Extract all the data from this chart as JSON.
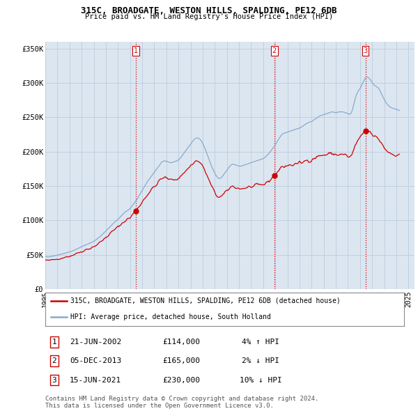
{
  "title": "315C, BROADGATE, WESTON HILLS, SPALDING, PE12 6DB",
  "subtitle": "Price paid vs. HM Land Registry's House Price Index (HPI)",
  "ylabel_ticks": [
    "£0",
    "£50K",
    "£100K",
    "£150K",
    "£200K",
    "£250K",
    "£300K",
    "£350K"
  ],
  "ytick_vals": [
    0,
    50000,
    100000,
    150000,
    200000,
    250000,
    300000,
    350000
  ],
  "ylim": [
    0,
    360000
  ],
  "xlim_start": 1995.0,
  "xlim_end": 2025.5,
  "red_line_color": "#cc0000",
  "blue_line_color": "#88aacc",
  "marker_color": "#cc0000",
  "vline_color": "#cc0000",
  "vline_style": ":",
  "grid_color": "#bbccdd",
  "background_color": "#dce6f1",
  "legend_label_red": "315C, BROADGATE, WESTON HILLS, SPALDING, PE12 6DB (detached house)",
  "legend_label_blue": "HPI: Average price, detached house, South Holland",
  "sale_labels": [
    {
      "num": 1,
      "date": "21-JUN-2002",
      "price": "£114,000",
      "pct": "4% ↑ HPI",
      "x_year": 2002.47
    },
    {
      "num": 2,
      "date": "05-DEC-2013",
      "price": "£165,000",
      "pct": "2% ↓ HPI",
      "x_year": 2013.92
    },
    {
      "num": 3,
      "date": "15-JUN-2021",
      "price": "£230,000",
      "pct": "10% ↓ HPI",
      "x_year": 2021.45
    }
  ],
  "sale_values": [
    114000,
    165000,
    230000
  ],
  "footnote": "Contains HM Land Registry data © Crown copyright and database right 2024.\nThis data is licensed under the Open Government Licence v3.0.",
  "hpi_data": [
    [
      1995.0,
      47500
    ],
    [
      1995.083,
      47200
    ],
    [
      1995.167,
      47000
    ],
    [
      1995.25,
      46900
    ],
    [
      1995.333,
      47000
    ],
    [
      1995.417,
      47300
    ],
    [
      1995.5,
      47600
    ],
    [
      1995.583,
      47800
    ],
    [
      1995.667,
      48100
    ],
    [
      1995.75,
      48400
    ],
    [
      1995.833,
      48700
    ],
    [
      1995.917,
      49000
    ],
    [
      1996.0,
      49300
    ],
    [
      1996.083,
      49700
    ],
    [
      1996.167,
      50100
    ],
    [
      1996.25,
      50500
    ],
    [
      1996.333,
      50800
    ],
    [
      1996.417,
      51200
    ],
    [
      1996.5,
      51600
    ],
    [
      1996.583,
      52000
    ],
    [
      1996.667,
      52400
    ],
    [
      1996.75,
      52800
    ],
    [
      1996.833,
      53200
    ],
    [
      1996.917,
      53600
    ],
    [
      1997.0,
      54000
    ],
    [
      1997.083,
      54500
    ],
    [
      1997.167,
      55000
    ],
    [
      1997.25,
      55600
    ],
    [
      1997.333,
      56200
    ],
    [
      1997.417,
      56900
    ],
    [
      1997.5,
      57600
    ],
    [
      1997.583,
      58300
    ],
    [
      1997.667,
      59000
    ],
    [
      1997.75,
      59700
    ],
    [
      1997.833,
      60400
    ],
    [
      1997.917,
      61000
    ],
    [
      1998.0,
      61700
    ],
    [
      1998.083,
      62400
    ],
    [
      1998.167,
      63000
    ],
    [
      1998.25,
      63700
    ],
    [
      1998.333,
      64300
    ],
    [
      1998.417,
      65000
    ],
    [
      1998.5,
      65600
    ],
    [
      1998.583,
      66200
    ],
    [
      1998.667,
      66800
    ],
    [
      1998.75,
      67400
    ],
    [
      1998.833,
      68100
    ],
    [
      1998.917,
      68800
    ],
    [
      1999.0,
      69600
    ],
    [
      1999.083,
      70500
    ],
    [
      1999.167,
      71500
    ],
    [
      1999.25,
      72600
    ],
    [
      1999.333,
      73700
    ],
    [
      1999.417,
      74900
    ],
    [
      1999.5,
      76100
    ],
    [
      1999.583,
      77400
    ],
    [
      1999.667,
      78800
    ],
    [
      1999.75,
      80100
    ],
    [
      1999.833,
      81500
    ],
    [
      1999.917,
      83000
    ],
    [
      2000.0,
      84500
    ],
    [
      2000.083,
      86000
    ],
    [
      2000.167,
      87500
    ],
    [
      2000.25,
      89000
    ],
    [
      2000.333,
      90500
    ],
    [
      2000.417,
      92000
    ],
    [
      2000.5,
      93500
    ],
    [
      2000.583,
      94900
    ],
    [
      2000.667,
      96300
    ],
    [
      2000.75,
      97700
    ],
    [
      2000.833,
      99000
    ],
    [
      2000.917,
      100300
    ],
    [
      2001.0,
      101500
    ],
    [
      2001.083,
      103000
    ],
    [
      2001.167,
      104500
    ],
    [
      2001.25,
      106000
    ],
    [
      2001.333,
      107500
    ],
    [
      2001.417,
      109000
    ],
    [
      2001.5,
      110500
    ],
    [
      2001.583,
      112000
    ],
    [
      2001.667,
      113000
    ],
    [
      2001.75,
      114000
    ],
    [
      2001.833,
      115000
    ],
    [
      2001.917,
      116000
    ],
    [
      2002.0,
      117000
    ],
    [
      2002.083,
      119000
    ],
    [
      2002.167,
      121000
    ],
    [
      2002.25,
      123000
    ],
    [
      2002.333,
      125000
    ],
    [
      2002.417,
      127000
    ],
    [
      2002.5,
      129000
    ],
    [
      2002.583,
      131000
    ],
    [
      2002.667,
      133500
    ],
    [
      2002.75,
      136000
    ],
    [
      2002.833,
      138500
    ],
    [
      2002.917,
      141000
    ],
    [
      2003.0,
      143500
    ],
    [
      2003.083,
      146000
    ],
    [
      2003.167,
      148500
    ],
    [
      2003.25,
      151000
    ],
    [
      2003.333,
      153500
    ],
    [
      2003.417,
      156000
    ],
    [
      2003.5,
      158000
    ],
    [
      2003.583,
      160000
    ],
    [
      2003.667,
      162000
    ],
    [
      2003.75,
      164000
    ],
    [
      2003.833,
      166000
    ],
    [
      2003.917,
      168000
    ],
    [
      2004.0,
      170000
    ],
    [
      2004.083,
      172000
    ],
    [
      2004.167,
      174000
    ],
    [
      2004.25,
      176000
    ],
    [
      2004.333,
      178000
    ],
    [
      2004.417,
      180000
    ],
    [
      2004.5,
      182000
    ],
    [
      2004.583,
      184000
    ],
    [
      2004.667,
      185500
    ],
    [
      2004.75,
      186000
    ],
    [
      2004.833,
      186500
    ],
    [
      2004.917,
      186500
    ],
    [
      2005.0,
      186000
    ],
    [
      2005.083,
      185500
    ],
    [
      2005.167,
      185000
    ],
    [
      2005.25,
      184500
    ],
    [
      2005.333,
      184000
    ],
    [
      2005.417,
      184000
    ],
    [
      2005.5,
      184500
    ],
    [
      2005.583,
      185000
    ],
    [
      2005.667,
      185500
    ],
    [
      2005.75,
      186000
    ],
    [
      2005.833,
      186500
    ],
    [
      2005.917,
      187000
    ],
    [
      2006.0,
      188000
    ],
    [
      2006.083,
      189500
    ],
    [
      2006.167,
      191000
    ],
    [
      2006.25,
      193000
    ],
    [
      2006.333,
      195000
    ],
    [
      2006.417,
      197000
    ],
    [
      2006.5,
      199000
    ],
    [
      2006.583,
      201000
    ],
    [
      2006.667,
      203000
    ],
    [
      2006.75,
      205000
    ],
    [
      2006.833,
      207000
    ],
    [
      2006.917,
      209000
    ],
    [
      2007.0,
      211000
    ],
    [
      2007.083,
      213000
    ],
    [
      2007.167,
      215000
    ],
    [
      2007.25,
      217000
    ],
    [
      2007.333,
      218500
    ],
    [
      2007.417,
      219500
    ],
    [
      2007.5,
      220000
    ],
    [
      2007.583,
      220000
    ],
    [
      2007.667,
      219500
    ],
    [
      2007.75,
      218500
    ],
    [
      2007.833,
      217000
    ],
    [
      2007.917,
      215000
    ],
    [
      2008.0,
      212000
    ],
    [
      2008.083,
      209000
    ],
    [
      2008.167,
      206000
    ],
    [
      2008.25,
      202000
    ],
    [
      2008.333,
      198000
    ],
    [
      2008.417,
      194000
    ],
    [
      2008.5,
      190000
    ],
    [
      2008.583,
      186000
    ],
    [
      2008.667,
      182000
    ],
    [
      2008.75,
      178000
    ],
    [
      2008.833,
      175000
    ],
    [
      2008.917,
      172000
    ],
    [
      2009.0,
      169000
    ],
    [
      2009.083,
      166000
    ],
    [
      2009.167,
      164000
    ],
    [
      2009.25,
      162000
    ],
    [
      2009.333,
      161000
    ],
    [
      2009.417,
      161000
    ],
    [
      2009.5,
      162000
    ],
    [
      2009.583,
      163000
    ],
    [
      2009.667,
      165000
    ],
    [
      2009.75,
      167000
    ],
    [
      2009.833,
      169000
    ],
    [
      2009.917,
      171000
    ],
    [
      2010.0,
      173000
    ],
    [
      2010.083,
      175000
    ],
    [
      2010.167,
      177000
    ],
    [
      2010.25,
      179000
    ],
    [
      2010.333,
      180500
    ],
    [
      2010.417,
      181500
    ],
    [
      2010.5,
      182000
    ],
    [
      2010.583,
      181500
    ],
    [
      2010.667,
      181000
    ],
    [
      2010.75,
      180500
    ],
    [
      2010.833,
      180000
    ],
    [
      2010.917,
      179500
    ],
    [
      2011.0,
      179000
    ],
    [
      2011.083,
      179000
    ],
    [
      2011.167,
      179000
    ],
    [
      2011.25,
      179500
    ],
    [
      2011.333,
      180000
    ],
    [
      2011.417,
      180500
    ],
    [
      2011.5,
      181000
    ],
    [
      2011.583,
      181500
    ],
    [
      2011.667,
      182000
    ],
    [
      2011.75,
      182500
    ],
    [
      2011.833,
      183000
    ],
    [
      2011.917,
      183500
    ],
    [
      2012.0,
      184000
    ],
    [
      2012.083,
      184500
    ],
    [
      2012.167,
      185000
    ],
    [
      2012.25,
      185500
    ],
    [
      2012.333,
      186000
    ],
    [
      2012.417,
      186500
    ],
    [
      2012.5,
      187000
    ],
    [
      2012.583,
      187500
    ],
    [
      2012.667,
      188000
    ],
    [
      2012.75,
      188500
    ],
    [
      2012.833,
      189000
    ],
    [
      2012.917,
      189500
    ],
    [
      2013.0,
      190000
    ],
    [
      2013.083,
      191000
    ],
    [
      2013.167,
      192000
    ],
    [
      2013.25,
      193500
    ],
    [
      2013.333,
      195000
    ],
    [
      2013.417,
      196500
    ],
    [
      2013.5,
      198000
    ],
    [
      2013.583,
      200000
    ],
    [
      2013.667,
      202000
    ],
    [
      2013.75,
      204000
    ],
    [
      2013.833,
      206000
    ],
    [
      2013.917,
      208000
    ],
    [
      2014.0,
      210000
    ],
    [
      2014.083,
      212500
    ],
    [
      2014.167,
      215000
    ],
    [
      2014.25,
      217500
    ],
    [
      2014.333,
      220000
    ],
    [
      2014.417,
      222000
    ],
    [
      2014.5,
      224000
    ],
    [
      2014.583,
      225500
    ],
    [
      2014.667,
      226500
    ],
    [
      2014.75,
      227000
    ],
    [
      2014.833,
      227500
    ],
    [
      2014.917,
      228000
    ],
    [
      2015.0,
      228500
    ],
    [
      2015.083,
      229000
    ],
    [
      2015.167,
      229500
    ],
    [
      2015.25,
      230000
    ],
    [
      2015.333,
      230500
    ],
    [
      2015.417,
      231000
    ],
    [
      2015.5,
      231500
    ],
    [
      2015.583,
      232000
    ],
    [
      2015.667,
      232500
    ],
    [
      2015.75,
      233000
    ],
    [
      2015.833,
      233500
    ],
    [
      2015.917,
      234000
    ],
    [
      2016.0,
      234500
    ],
    [
      2016.083,
      235000
    ],
    [
      2016.167,
      236000
    ],
    [
      2016.25,
      237000
    ],
    [
      2016.333,
      238000
    ],
    [
      2016.417,
      239000
    ],
    [
      2016.5,
      240000
    ],
    [
      2016.583,
      241000
    ],
    [
      2016.667,
      242000
    ],
    [
      2016.75,
      242500
    ],
    [
      2016.833,
      243000
    ],
    [
      2016.917,
      243500
    ],
    [
      2017.0,
      244000
    ],
    [
      2017.083,
      245000
    ],
    [
      2017.167,
      246000
    ],
    [
      2017.25,
      247000
    ],
    [
      2017.333,
      248000
    ],
    [
      2017.417,
      249000
    ],
    [
      2017.5,
      250000
    ],
    [
      2017.583,
      251000
    ],
    [
      2017.667,
      252000
    ],
    [
      2017.75,
      252500
    ],
    [
      2017.833,
      253000
    ],
    [
      2017.917,
      253500
    ],
    [
      2018.0,
      254000
    ],
    [
      2018.083,
      254500
    ],
    [
      2018.167,
      255000
    ],
    [
      2018.25,
      255500
    ],
    [
      2018.333,
      256000
    ],
    [
      2018.417,
      256500
    ],
    [
      2018.5,
      257000
    ],
    [
      2018.583,
      257500
    ],
    [
      2018.667,
      258000
    ],
    [
      2018.75,
      258000
    ],
    [
      2018.833,
      257500
    ],
    [
      2018.917,
      257000
    ],
    [
      2019.0,
      257000
    ],
    [
      2019.083,
      257000
    ],
    [
      2019.167,
      257500
    ],
    [
      2019.25,
      258000
    ],
    [
      2019.333,
      258000
    ],
    [
      2019.417,
      258000
    ],
    [
      2019.5,
      258000
    ],
    [
      2019.583,
      258000
    ],
    [
      2019.667,
      257500
    ],
    [
      2019.75,
      257000
    ],
    [
      2019.833,
      256500
    ],
    [
      2019.917,
      256000
    ],
    [
      2020.0,
      255500
    ],
    [
      2020.083,
      255000
    ],
    [
      2020.167,
      254500
    ],
    [
      2020.25,
      256000
    ],
    [
      2020.333,
      259000
    ],
    [
      2020.417,
      264000
    ],
    [
      2020.5,
      270000
    ],
    [
      2020.583,
      276000
    ],
    [
      2020.667,
      281000
    ],
    [
      2020.75,
      285000
    ],
    [
      2020.833,
      288000
    ],
    [
      2020.917,
      290000
    ],
    [
      2021.0,
      292000
    ],
    [
      2021.083,
      295000
    ],
    [
      2021.167,
      298000
    ],
    [
      2021.25,
      301000
    ],
    [
      2021.333,
      304000
    ],
    [
      2021.417,
      307000
    ],
    [
      2021.5,
      309000
    ],
    [
      2021.583,
      309000
    ],
    [
      2021.667,
      308000
    ],
    [
      2021.75,
      307000
    ],
    [
      2021.833,
      305000
    ],
    [
      2021.917,
      303000
    ],
    [
      2022.0,
      301000
    ],
    [
      2022.083,
      299000
    ],
    [
      2022.167,
      297000
    ],
    [
      2022.25,
      296000
    ],
    [
      2022.333,
      295000
    ],
    [
      2022.417,
      294000
    ],
    [
      2022.5,
      293000
    ],
    [
      2022.583,
      291000
    ],
    [
      2022.667,
      288000
    ],
    [
      2022.75,
      285000
    ],
    [
      2022.833,
      282000
    ],
    [
      2022.917,
      279000
    ],
    [
      2023.0,
      276000
    ],
    [
      2023.083,
      273000
    ],
    [
      2023.167,
      271000
    ],
    [
      2023.25,
      269000
    ],
    [
      2023.333,
      267500
    ],
    [
      2023.417,
      266000
    ],
    [
      2023.5,
      265000
    ],
    [
      2023.583,
      264000
    ],
    [
      2023.667,
      263500
    ],
    [
      2023.75,
      263000
    ],
    [
      2023.833,
      262500
    ],
    [
      2023.917,
      262000
    ],
    [
      2024.0,
      261500
    ],
    [
      2024.083,
      261000
    ],
    [
      2024.167,
      260500
    ],
    [
      2024.25,
      260000
    ]
  ]
}
